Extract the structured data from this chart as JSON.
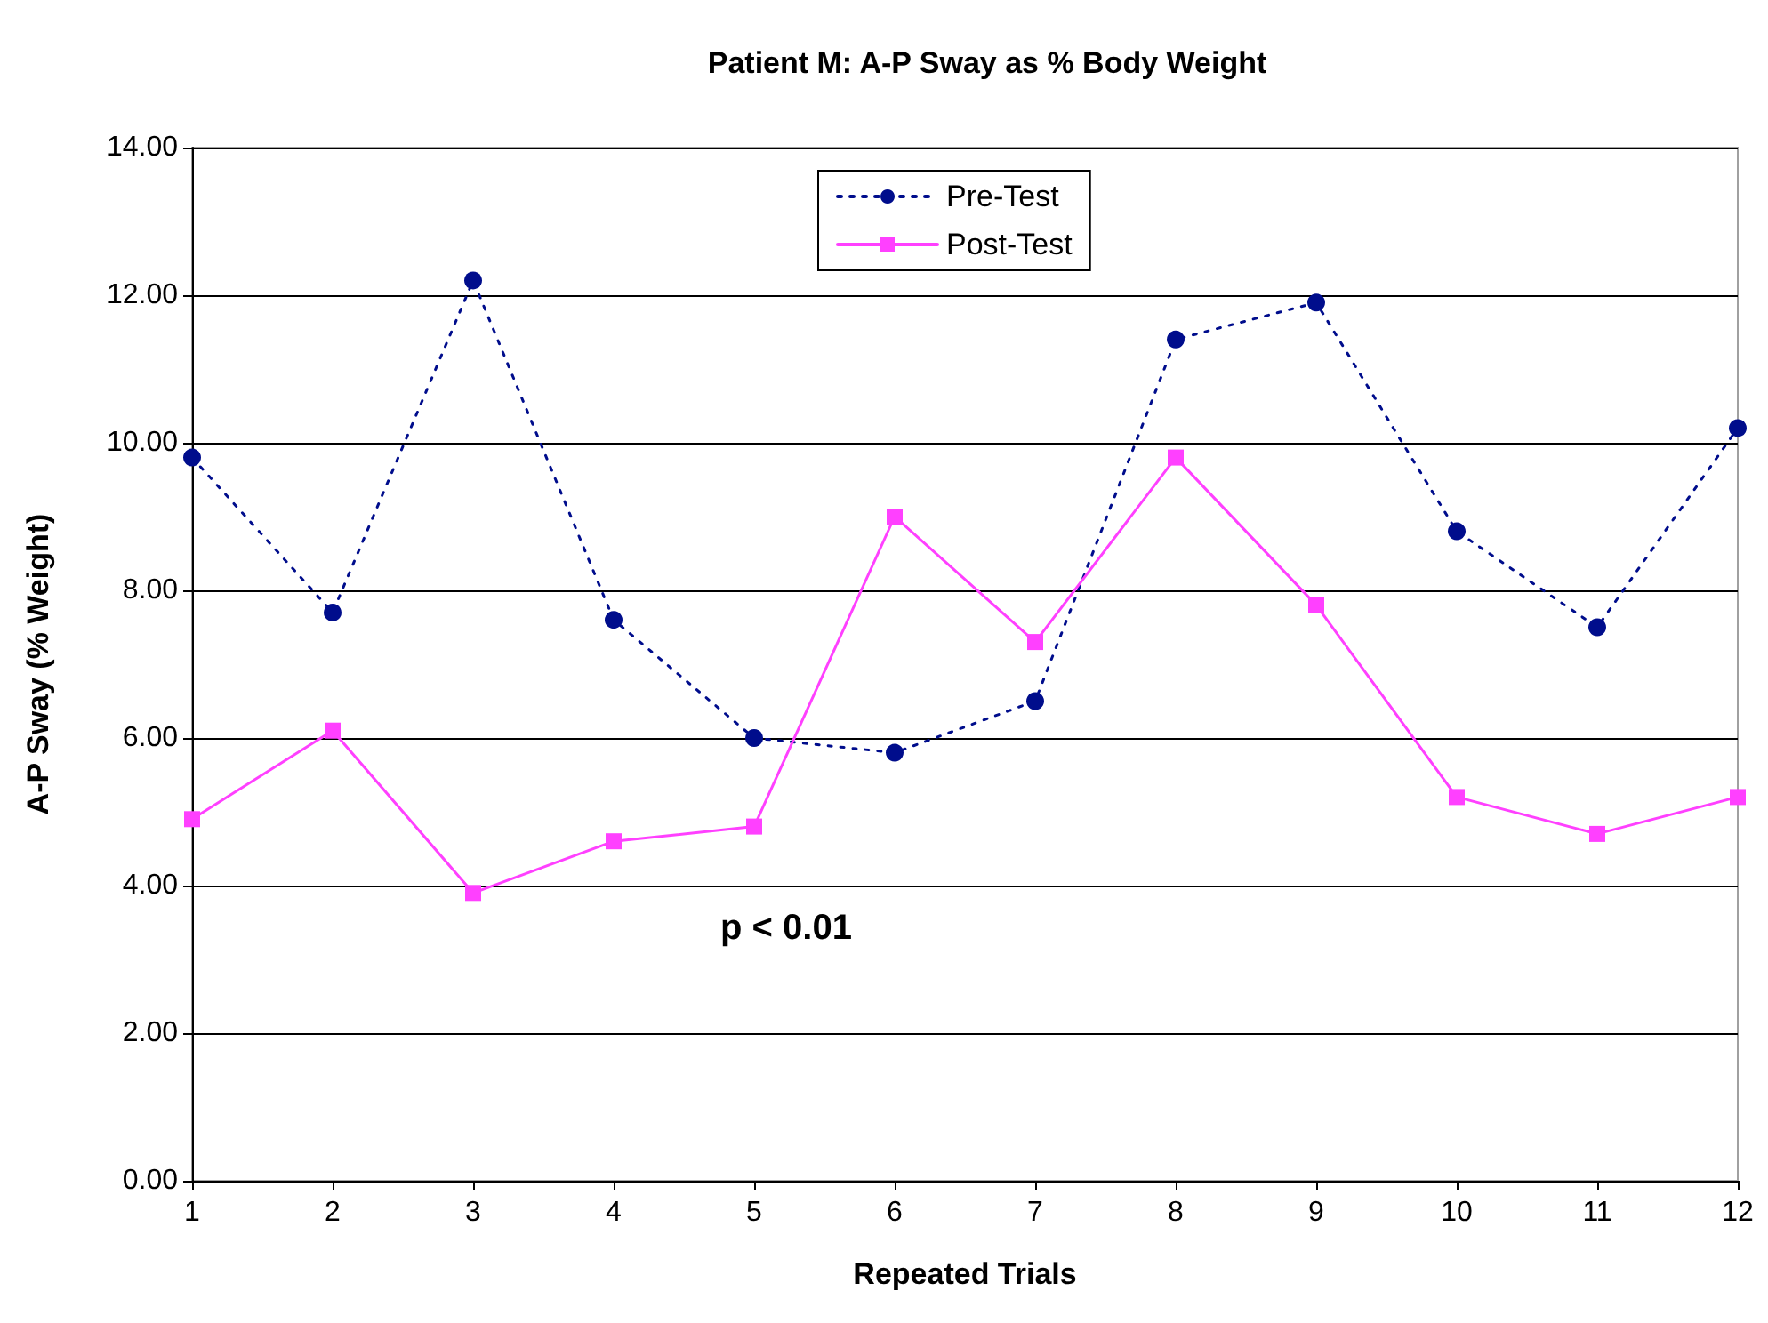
{
  "chart_data": {
    "type": "line",
    "title": "Patient M: A-P Sway as % Body Weight",
    "xlabel": "Repeated Trials",
    "ylabel": "A-P Sway (% Weight)",
    "x": [
      1,
      2,
      3,
      4,
      5,
      6,
      7,
      8,
      9,
      10,
      11,
      12
    ],
    "xlim": [
      1,
      12
    ],
    "xticks": [
      1,
      2,
      3,
      4,
      5,
      6,
      7,
      8,
      9,
      10,
      11,
      12
    ],
    "series": [
      {
        "name": "Pre-Test",
        "color": "#000d8c",
        "marker": "circle",
        "line_style": "dotted",
        "values": [
          9.8,
          7.7,
          12.2,
          7.6,
          6.0,
          5.8,
          6.5,
          11.4,
          11.9,
          8.8,
          7.5,
          10.2
        ]
      },
      {
        "name": "Post-Test",
        "color": "#ff40ff",
        "marker": "square",
        "line_style": "solid",
        "values": [
          4.9,
          6.1,
          3.9,
          4.6,
          4.8,
          9.0,
          7.3,
          9.8,
          7.8,
          5.2,
          4.7,
          5.2
        ]
      }
    ],
    "ylim": [
      0,
      14
    ],
    "yticks": [
      {
        "value": 0,
        "label": "0.00"
      },
      {
        "value": 2,
        "label": "2.00"
      },
      {
        "value": 4,
        "label": "4.00"
      },
      {
        "value": 6,
        "label": "6.00"
      },
      {
        "value": 8,
        "label": "8.00"
      },
      {
        "value": 10,
        "label": "10.00"
      },
      {
        "value": 12,
        "label": "12.00"
      },
      {
        "value": 14,
        "label": "14.00"
      }
    ],
    "grid": "y",
    "legend": "top",
    "annotations": [
      "p < 0.01"
    ]
  }
}
